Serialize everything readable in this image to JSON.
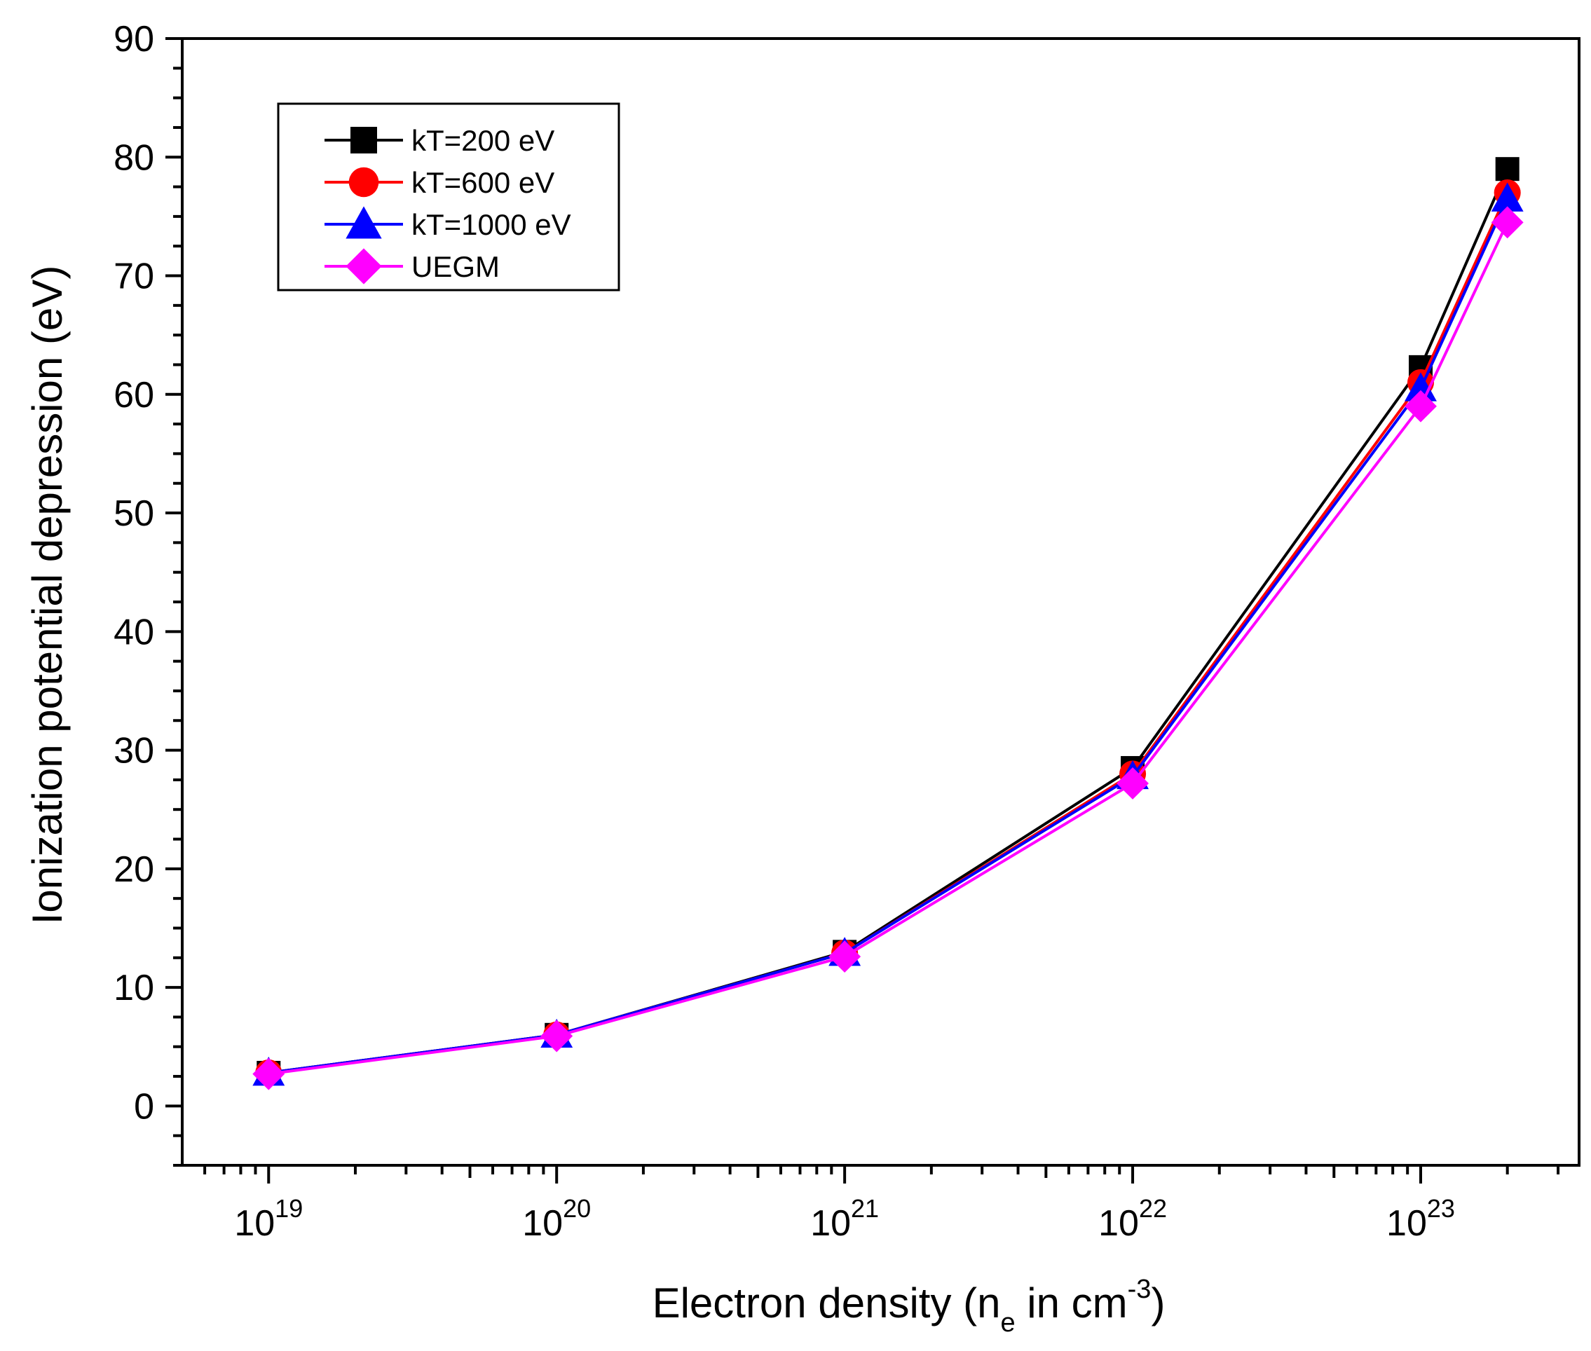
{
  "chart_data": {
    "type": "line",
    "xscale": "log10",
    "xlim_log10": [
      18.7,
      23.55
    ],
    "ylim": [
      -5,
      90
    ],
    "y_major_ticks": [
      0,
      10,
      20,
      30,
      40,
      50,
      60,
      70,
      80,
      90
    ],
    "y_minor_step": 2.5,
    "x_major_ticks": [
      {
        "exp": 19,
        "base": "10",
        "sup": "19"
      },
      {
        "exp": 20,
        "base": "10",
        "sup": "20"
      },
      {
        "exp": 21,
        "base": "10",
        "sup": "21"
      },
      {
        "exp": 22,
        "base": "10",
        "sup": "22"
      },
      {
        "exp": 23,
        "base": "10",
        "sup": "23"
      }
    ],
    "ylabel": "Ionization potential depression (eV)",
    "xlabel": {
      "prefix": "Electron density (n",
      "sub": "e",
      "mid": " in cm",
      "sup": "-3",
      "suffix": ")"
    },
    "x": [
      1e+19,
      1e+20,
      1e+21,
      1e+22,
      1e+23,
      2e+23
    ],
    "series": [
      {
        "name": "kT=200 eV",
        "color": "#000000",
        "marker": "square",
        "values": [
          2.8,
          6.0,
          13.0,
          28.5,
          62.3,
          79.0
        ]
      },
      {
        "name": "kT=600 eV",
        "color": "#ff0000",
        "marker": "circle",
        "values": [
          2.8,
          6.0,
          12.9,
          28.0,
          61.0,
          77.0
        ]
      },
      {
        "name": "kT=1000 eV",
        "color": "#0000ff",
        "marker": "triangle",
        "values": [
          2.8,
          6.0,
          12.9,
          27.8,
          60.5,
          76.5
        ]
      },
      {
        "name": "UEGM",
        "color": "#ff00ff",
        "marker": "diamond",
        "values": [
          2.7,
          5.9,
          12.6,
          27.2,
          59.0,
          74.5
        ]
      }
    ],
    "legend_position": "top-left"
  }
}
